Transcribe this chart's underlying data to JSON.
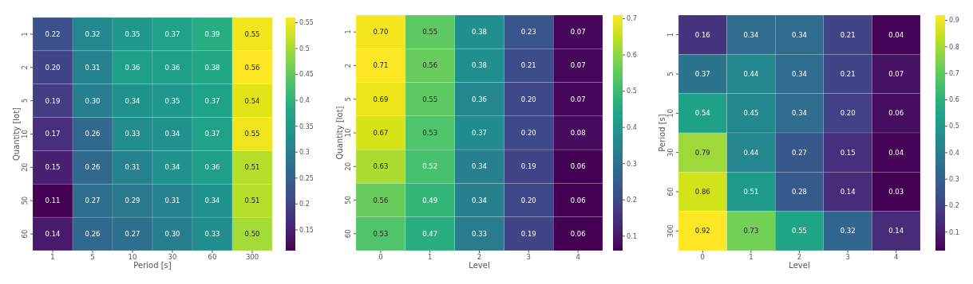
{
  "chart_data": [
    {
      "type": "heatmap",
      "xlabel": "Period [s]",
      "ylabel": "Quantity [lot]",
      "categories": [
        "1",
        "5",
        "10",
        "30",
        "60",
        "300"
      ],
      "y_categories": [
        "1",
        "2",
        "5",
        "10",
        "20",
        "50",
        "60"
      ],
      "cells": [
        [
          0.22,
          0.32,
          0.35,
          0.37,
          0.39,
          0.55
        ],
        [
          0.2,
          0.31,
          0.36,
          0.36,
          0.38,
          0.56
        ],
        [
          0.19,
          0.3,
          0.34,
          0.35,
          0.37,
          0.54
        ],
        [
          0.17,
          0.26,
          0.33,
          0.34,
          0.37,
          0.55
        ],
        [
          0.15,
          0.26,
          0.31,
          0.34,
          0.36,
          0.51
        ],
        [
          0.11,
          0.27,
          0.29,
          0.31,
          0.34,
          0.51
        ],
        [
          0.14,
          0.26,
          0.27,
          0.3,
          0.33,
          0.5
        ]
      ],
      "cell_labels": [
        [
          "0.22",
          "0.32",
          "0.35",
          "0.37",
          "0.39",
          "0.55"
        ],
        [
          "0.20",
          "0.31",
          "0.36",
          "0.36",
          "0.38",
          "0.56"
        ],
        [
          "0.19",
          "0.30",
          "0.34",
          "0.35",
          "0.37",
          "0.54"
        ],
        [
          "0.17",
          "0.26",
          "0.33",
          "0.34",
          "0.37",
          "0.55"
        ],
        [
          "0.15",
          "0.26",
          "0.31",
          "0.34",
          "0.36",
          "0.51"
        ],
        [
          "0.11",
          "0.27",
          "0.29",
          "0.31",
          "0.34",
          "0.51"
        ],
        [
          "0.14",
          "0.26",
          "0.27",
          "0.30",
          "0.33",
          "0.50"
        ]
      ],
      "clim": [
        0.11,
        0.56
      ],
      "cticks": [
        0.15,
        0.2,
        0.25,
        0.3,
        0.35,
        0.4,
        0.45,
        0.5,
        0.55
      ]
    },
    {
      "type": "heatmap",
      "xlabel": "Level",
      "ylabel": "Quantity [lot]",
      "categories": [
        "0",
        "1",
        "2",
        "3",
        "4"
      ],
      "y_categories": [
        "1",
        "2",
        "5",
        "10",
        "20",
        "50",
        "60"
      ],
      "cells": [
        [
          0.7,
          0.55,
          0.38,
          0.23,
          0.07
        ],
        [
          0.71,
          0.56,
          0.38,
          0.21,
          0.07
        ],
        [
          0.69,
          0.55,
          0.36,
          0.2,
          0.07
        ],
        [
          0.67,
          0.53,
          0.37,
          0.2,
          0.08
        ],
        [
          0.63,
          0.52,
          0.34,
          0.19,
          0.06
        ],
        [
          0.56,
          0.49,
          0.34,
          0.2,
          0.06
        ],
        [
          0.53,
          0.47,
          0.33,
          0.19,
          0.06
        ]
      ],
      "cell_labels": [
        [
          "0.70",
          "0.55",
          "0.38",
          "0.23",
          "0.07"
        ],
        [
          "0.71",
          "0.56",
          "0.38",
          "0.21",
          "0.07"
        ],
        [
          "0.69",
          "0.55",
          "0.36",
          "0.20",
          "0.07"
        ],
        [
          "0.67",
          "0.53",
          "0.37",
          "0.20",
          "0.08"
        ],
        [
          "0.63",
          "0.52",
          "0.34",
          "0.19",
          "0.06"
        ],
        [
          "0.56",
          "0.49",
          "0.34",
          "0.20",
          "0.06"
        ],
        [
          "0.53",
          "0.47",
          "0.33",
          "0.19",
          "0.06"
        ]
      ],
      "clim": [
        0.06,
        0.71
      ],
      "cticks": [
        0.1,
        0.2,
        0.3,
        0.4,
        0.5,
        0.6,
        0.7
      ]
    },
    {
      "type": "heatmap",
      "xlabel": "Level",
      "ylabel": "Period [s]",
      "categories": [
        "0",
        "1",
        "2",
        "3",
        "4"
      ],
      "y_categories": [
        "1",
        "5",
        "10",
        "30",
        "60",
        "300"
      ],
      "cells": [
        [
          0.16,
          0.34,
          0.34,
          0.21,
          0.04
        ],
        [
          0.37,
          0.44,
          0.34,
          0.21,
          0.07
        ],
        [
          0.54,
          0.45,
          0.34,
          0.2,
          0.06
        ],
        [
          0.79,
          0.44,
          0.27,
          0.15,
          0.04
        ],
        [
          0.86,
          0.51,
          0.28,
          0.14,
          0.03
        ],
        [
          0.92,
          0.73,
          0.55,
          0.32,
          0.14
        ]
      ],
      "cell_labels": [
        [
          "0.16",
          "0.34",
          "0.34",
          "0.21",
          "0.04"
        ],
        [
          "0.37",
          "0.44",
          "0.34",
          "0.21",
          "0.07"
        ],
        [
          "0.54",
          "0.45",
          "0.34",
          "0.20",
          "0.06"
        ],
        [
          "0.79",
          "0.44",
          "0.27",
          "0.15",
          "0.04"
        ],
        [
          "0.86",
          "0.51",
          "0.28",
          "0.14",
          "0.03"
        ],
        [
          "0.92",
          "0.73",
          "0.55",
          "0.32",
          "0.14"
        ]
      ],
      "clim": [
        0.03,
        0.92
      ],
      "cticks": [
        0.1,
        0.2,
        0.3,
        0.4,
        0.5,
        0.6,
        0.7,
        0.8,
        0.9
      ]
    }
  ]
}
